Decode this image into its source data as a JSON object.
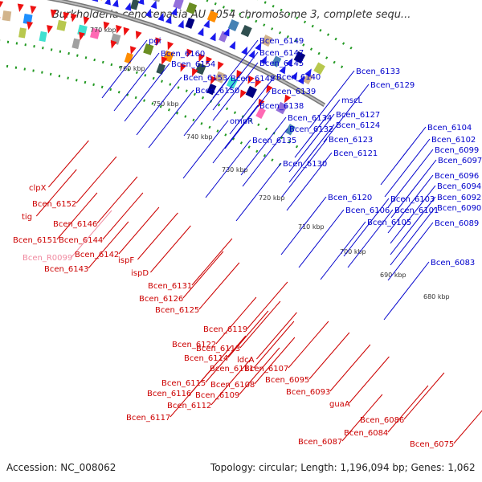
{
  "header": {
    "title": "Burkholderia cenocepacia AU 1054 chromosome 3, complete sequ..."
  },
  "footer": {
    "accession": "Accession: NC_008062",
    "summary": "Topology: circular; Length: 1,196,094 bp; Genes: 1,062"
  },
  "colors": {
    "forward_label": "#0000cc",
    "reverse_label": "#cc0000",
    "rna_label": "#f08aa0",
    "forward_arrow": "#1a1aee",
    "reverse_arrow": "#ee1111",
    "backbone": "#888888",
    "ticks": "#229922"
  },
  "kbp_ticks": [
    "770 kbp",
    "760 kbp",
    "750 kbp",
    "740 kbp",
    "730 kbp",
    "720 kbp",
    "710 kbp",
    "700 kbp",
    "690 kbp",
    "680 kbp"
  ],
  "forward_genes": [
    "pgi",
    "Bcen_6160",
    "Bcen_6154",
    "Bcen_6153",
    "Bcen_6150",
    "Bcen_6149",
    "Bcen_6147",
    "Bcen_6145",
    "Bcen_6148",
    "Bcen_6140",
    "Bcen_6139",
    "Bcen_6138",
    "ompR",
    "Bcen_6134",
    "Bcen_6135",
    "Bcen_6132",
    "Bcen_6133",
    "Bcen_6129",
    "mscL",
    "Bcen_6127",
    "Bcen_6124",
    "Bcen_6123",
    "Bcen_6121",
    "Bcen_6130",
    "Bcen_6120",
    "Bcen_6106",
    "Bcen_6105",
    "Bcen_6104",
    "Bcen_6102",
    "Bcen_6099",
    "Bcen_6097",
    "Bcen_6096",
    "Bcen_6094",
    "Bcen_6103",
    "Bcen_6101",
    "Bcen_6092",
    "Bcen_6090",
    "Bcen_6089",
    "Bcen_6083"
  ],
  "reverse_genes": [
    "clpX",
    "Bcen_6152",
    "tig",
    "Bcen_6146",
    "Bcen_6151",
    "Bcen_6144",
    "Bcen_R0099",
    "Bcen_6142",
    "Bcen_6143",
    "ispF",
    "ispD",
    "Bcen_6131",
    "Bcen_6126",
    "Bcen_6125",
    "Bcen_6119",
    "Bcen_6122",
    "Bcen_6113",
    "Bcen_6114",
    "Bcen_6111",
    "ldcA",
    "Bcen_6107",
    "Bcen_6108",
    "Bcen_6115",
    "Bcen_6116",
    "Bcen_6109",
    "Bcen_6112",
    "Bcen_6117",
    "Bcen_6095",
    "Bcen_6093",
    "guaA",
    "Bcen_6086",
    "Bcen_6084",
    "Bcen_6087",
    "Bcen_6075"
  ]
}
